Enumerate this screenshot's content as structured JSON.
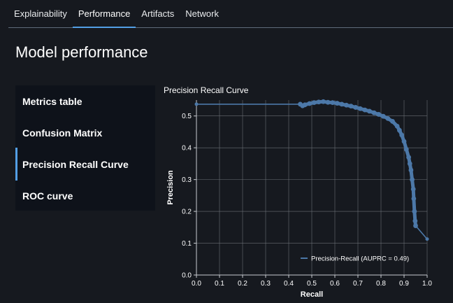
{
  "tabs": [
    {
      "label": "Explainability",
      "active": false
    },
    {
      "label": "Performance",
      "active": true
    },
    {
      "label": "Artifacts",
      "active": false
    },
    {
      "label": "Network",
      "active": false
    }
  ],
  "page_title": "Model performance",
  "side_nav": {
    "items": [
      {
        "label": "Metrics table",
        "active": false
      },
      {
        "label": "Confusion Matrix",
        "active": false
      },
      {
        "label": "Precision Recall Curve",
        "active": true
      },
      {
        "label": "ROC curve",
        "active": false
      }
    ]
  },
  "colors": {
    "accent": "#539fe5",
    "series": "#4c78a8",
    "background": "#16191f"
  },
  "chart_data": {
    "type": "line",
    "title": "Precision Recall Curve",
    "xlabel": "Recall",
    "ylabel": "Precision",
    "xlim": [
      0,
      1
    ],
    "ylim": [
      0,
      0.55
    ],
    "x_ticks": [
      "0.0",
      "0.1",
      "0.2",
      "0.3",
      "0.4",
      "0.5",
      "0.6",
      "0.7",
      "0.8",
      "0.9",
      "1.0"
    ],
    "y_ticks": [
      "0.0",
      "0.1",
      "0.2",
      "0.3",
      "0.4",
      "0.5"
    ],
    "grid": true,
    "legend_position": "bottom-right",
    "series": [
      {
        "name": "Precision-Recall (AUPRC = 0.49)",
        "x": [
          0.0,
          0.45,
          0.46,
          0.47,
          0.49,
          0.51,
          0.53,
          0.55,
          0.57,
          0.59,
          0.61,
          0.63,
          0.65,
          0.67,
          0.69,
          0.71,
          0.73,
          0.75,
          0.77,
          0.79,
          0.81,
          0.83,
          0.85,
          0.87,
          0.88,
          0.89,
          0.9,
          0.91,
          0.92,
          0.925,
          0.93,
          0.935,
          0.94,
          0.942,
          0.945,
          0.948,
          0.95,
          1.0
        ],
        "y": [
          0.537,
          0.537,
          0.532,
          0.535,
          0.539,
          0.542,
          0.544,
          0.545,
          0.543,
          0.542,
          0.54,
          0.537,
          0.534,
          0.531,
          0.527,
          0.523,
          0.519,
          0.515,
          0.51,
          0.505,
          0.499,
          0.492,
          0.483,
          0.468,
          0.455,
          0.44,
          0.42,
          0.395,
          0.37,
          0.35,
          0.33,
          0.3,
          0.27,
          0.24,
          0.2,
          0.17,
          0.155,
          0.113
        ]
      }
    ]
  }
}
